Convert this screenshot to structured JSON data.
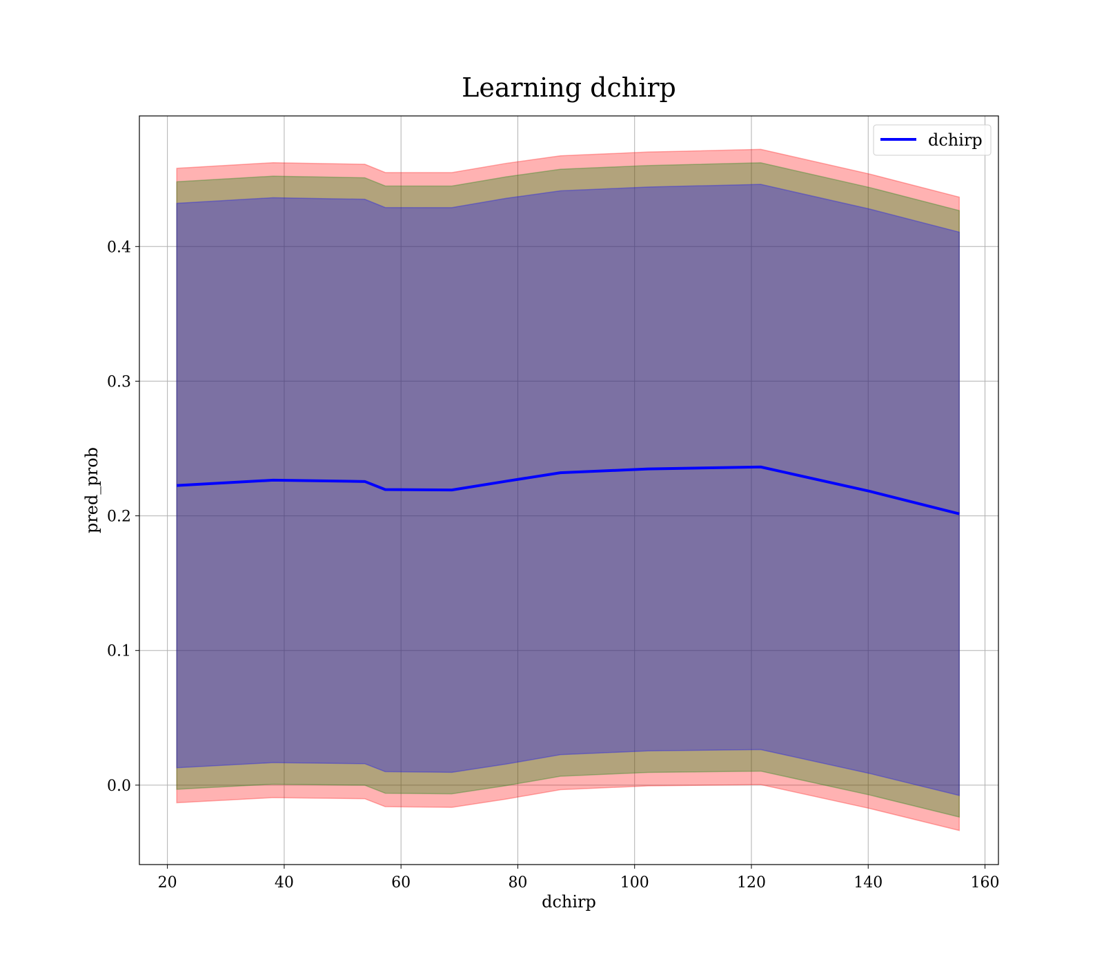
{
  "chart_data": {
    "type": "line",
    "title": "Learning dchirp",
    "xlabel": "dchirp",
    "ylabel": "pred_prob",
    "xlim": [
      15.2,
      162.3
    ],
    "ylim": [
      -0.059,
      0.497
    ],
    "xticks": [
      20,
      40,
      60,
      80,
      100,
      120,
      140,
      160
    ],
    "yticks": [
      0.0,
      0.1,
      0.2,
      0.3,
      0.4
    ],
    "ytick_labels": [
      "0.0",
      "0.1",
      "0.2",
      "0.3",
      "0.4"
    ],
    "grid": true,
    "legend_position": "top-right",
    "x": [
      21.6,
      38.1,
      53.8,
      57.3,
      68.7,
      78.0,
      87.3,
      102.3,
      121.6,
      140.3,
      155.6
    ],
    "series": [
      {
        "name": "dchirp",
        "color": "#0000ff",
        "values": [
          0.2225,
          0.2265,
          0.2255,
          0.2195,
          0.2192,
          0.2257,
          0.232,
          0.2348,
          0.2363,
          0.2182,
          0.2015
        ]
      }
    ],
    "bands": [
      {
        "color": "#ff0000",
        "opacity": 0.3,
        "lower": [
          -0.0131,
          -0.0093,
          -0.0101,
          -0.016,
          -0.0165,
          -0.0104,
          -0.0034,
          -0.0006,
          0.0004,
          -0.0174,
          -0.0337
        ],
        "upper": [
          0.4581,
          0.4623,
          0.4611,
          0.455,
          0.4549,
          0.4618,
          0.4674,
          0.4702,
          0.4722,
          0.4538,
          0.4367
        ]
      },
      {
        "color": "#008000",
        "opacity": 0.3,
        "lower": [
          -0.0031,
          0.0007,
          -0.0001,
          -0.006,
          -0.0065,
          -0.0004,
          0.0066,
          0.0094,
          0.0104,
          -0.0074,
          -0.0237
        ],
        "upper": [
          0.4481,
          0.4523,
          0.4511,
          0.445,
          0.4449,
          0.4518,
          0.4574,
          0.4602,
          0.4622,
          0.4438,
          0.4267
        ]
      },
      {
        "color": "#0000ff",
        "opacity": 0.3,
        "lower": [
          0.0129,
          0.0167,
          0.0159,
          0.01,
          0.0095,
          0.0156,
          0.0226,
          0.0254,
          0.0264,
          0.0086,
          -0.0077
        ],
        "upper": [
          0.4321,
          0.4363,
          0.4351,
          0.429,
          0.4289,
          0.4358,
          0.4414,
          0.4442,
          0.4462,
          0.4278,
          0.4107
        ]
      }
    ]
  }
}
